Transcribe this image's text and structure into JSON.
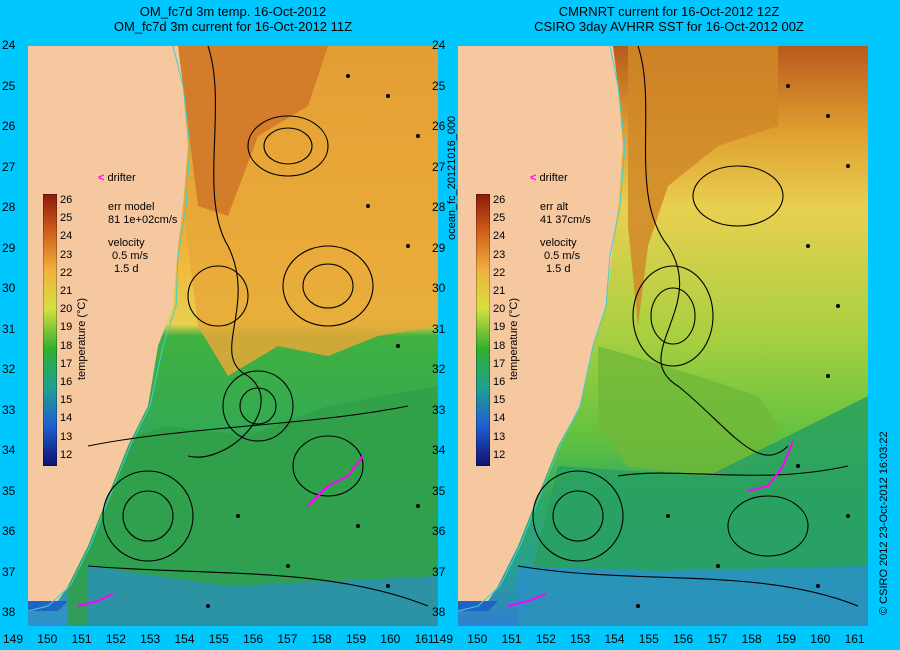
{
  "left_panel": {
    "title_line1": "OM_fc7d 3m temp. 16-Oct-2012",
    "title_line2": "OM_fc7d 3m current for 16-Oct-2012 11Z",
    "err_label": "err model",
    "err_value": "81 1e+02cm/s",
    "velocity_label": "velocity",
    "velocity_scale": "0.5 m/s",
    "velocity_time": "1.5 d",
    "drifter_label": "drifter"
  },
  "right_panel": {
    "title_line1": "CMRNRT current for 16-Oct-2012 12Z",
    "title_line2": "CSIRO 3day AVHRR SST for 16-Oct-2012 00Z",
    "err_label": "err alt",
    "err_value": "41 37cm/s",
    "velocity_label": "velocity",
    "velocity_scale": "0.5 m/s",
    "velocity_time": "1.5 d",
    "drifter_label": "drifter"
  },
  "colorbar": {
    "label": "temperature (°C)",
    "ticks": [
      "26",
      "25",
      "24",
      "23",
      "22",
      "21",
      "20",
      "19",
      "18",
      "17",
      "16",
      "15",
      "14",
      "13",
      "12"
    ]
  },
  "latitudes": [
    "24",
    "25",
    "26",
    "27",
    "28",
    "29",
    "30",
    "31",
    "32",
    "33",
    "34",
    "35",
    "36",
    "37",
    "38"
  ],
  "longitudes": [
    "149",
    "150",
    "151",
    "152",
    "153",
    "154",
    "155",
    "156",
    "157",
    "158",
    "159",
    "160",
    "161"
  ],
  "side_label": "ocean_fc_20121016_000",
  "copyright": "© CSIRO 2012  23-Oct-2012 16:03:22",
  "colors": {
    "background": "#00c8ff",
    "land": "#f6c8a0",
    "drifter": "#ff00ff",
    "coast": "#40d0d0"
  }
}
